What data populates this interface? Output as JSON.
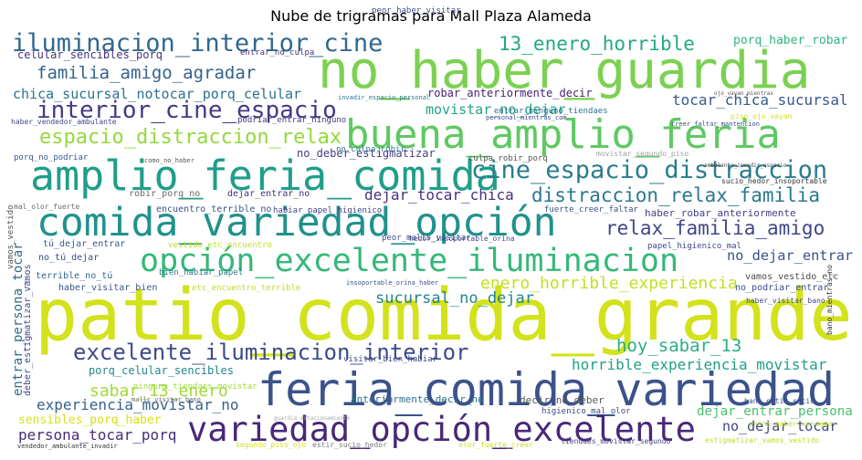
{
  "chart_data": {
    "type": "wordcloud",
    "title": "Nube de trigramas para Mall Plaza Alameda",
    "words": [
      {
        "text": "patio_comida_grande",
        "color": "#d2e21b"
      },
      {
        "text": "no_haber_guardia",
        "color": "#7ad151"
      },
      {
        "text": "feria_comida_variedad",
        "color": "#3b528b"
      },
      {
        "text": "variedad_opción_excelente",
        "color": "#482878"
      },
      {
        "text": "comida_variedad_opción",
        "color": "#21918c"
      },
      {
        "text": "amplio_feria_comida",
        "color": "#1f9e89"
      },
      {
        "text": "opción_excelente_iluminacion",
        "color": "#35b779"
      },
      {
        "text": "buena_amplio_feria",
        "color": "#5ec962"
      },
      {
        "text": "iluminacion_interior_cine",
        "color": "#31688e"
      },
      {
        "text": "excelente_iluminacion_interior",
        "color": "#3e4a89"
      },
      {
        "text": "interior_cine_espacio",
        "color": "#443983"
      },
      {
        "text": "cine_espacio_distraccion",
        "color": "#287d8e"
      },
      {
        "text": "espacio_distraccion_relax",
        "color": "#95d840"
      },
      {
        "text": "13_enero_horrible",
        "color": "#22a884"
      },
      {
        "text": "distraccion_relax_familia",
        "color": "#2a788e"
      },
      {
        "text": "relax_familia_amigo",
        "color": "#404688"
      },
      {
        "text": "familia_amigo_agradar",
        "color": "#33638d"
      },
      {
        "text": "chica_sucursal_notocar_porq_celular",
        "color": "#2c728e"
      },
      {
        "text": "tocar_chica_sucursal",
        "color": "#38598c"
      },
      {
        "text": "dejar_tocar_chica",
        "color": "#46327e"
      },
      {
        "text": "hoy_sabar_13",
        "color": "#29af7f"
      },
      {
        "text": "sabar_13_enero",
        "color": "#a0da39"
      },
      {
        "text": "sucursal_no_dejar",
        "color": "#26828e"
      },
      {
        "text": "enero_horrible_experiencia",
        "color": "#c2df23"
      },
      {
        "text": "no_dejar_entrar",
        "color": "#3b528b"
      },
      {
        "text": "horrible_experiencia_movistar",
        "color": "#1fa088"
      },
      {
        "text": "experiencia_movistar_no",
        "color": "#355f8d"
      },
      {
        "text": "dejar_entrar_persona",
        "color": "#4ac16d"
      },
      {
        "text": "persona_tocar_porq",
        "color": "#472d7b"
      },
      {
        "text": "no_dejar_tocar",
        "color": "#414487"
      },
      {
        "text": "movistar_no_dejar",
        "color": "#20a486"
      },
      {
        "text": "entrar_persona_tocar",
        "color": "#2f6c8e"
      },
      {
        "text": "sensibles_porq_haber",
        "color": "#d5e21a"
      },
      {
        "text": "porq_haber_robar",
        "color": "#2fb47c"
      },
      {
        "text": "celular_sencibles_porq",
        "color": "#46337f"
      },
      {
        "text": "porq_celular_sencibles",
        "color": "#24868e"
      },
      {
        "text": "robar_anteriormente_decir",
        "color": "#482173"
      },
      {
        "text": "anteriormente_decir_no",
        "color": "#2d708e"
      },
      {
        "text": "decir_no_deber",
        "color": "#5b5b5b"
      },
      {
        "text": "no_deber_estigmatizar",
        "color": "#433e85"
      },
      {
        "text": "haber_robar_anteriormente",
        "color": "#433e85"
      },
      {
        "text": "haber_visitar_bien",
        "color": "#38588c"
      },
      {
        "text": "bien_habiar_papel",
        "color": "#2a788e"
      },
      {
        "text": "papel_higienico_mal",
        "color": "#404588"
      },
      {
        "text": "vamos_vestido_etc",
        "color": "#4e4e4e"
      },
      {
        "text": "no_podriar_entrar",
        "color": "#3d4d8a"
      },
      {
        "text": "dejar_entrar_no",
        "color": "#46307e"
      },
      {
        "text": "robir_porq_no",
        "color": "#6a6a6a"
      },
      {
        "text": "culpa_robir_porq",
        "color": "#555555"
      },
      {
        "text": "podriar_entrar_ninguno",
        "color": "#453781"
      },
      {
        "text": "entrar_ninguno_tiendaes",
        "color": "#2c728e"
      },
      {
        "text": "movistar_segundo_piso",
        "color": "#a2a2a2"
      },
      {
        "text": "encuentro_terrible_no",
        "color": "#3a548c"
      },
      {
        "text": "tú_dejar_entrar",
        "color": "#375b8d"
      },
      {
        "text": "no_tú_dejar",
        "color": "#3e4c8a"
      },
      {
        "text": "terrible_no_tú",
        "color": "#31668e"
      },
      {
        "text": "haber_vendedor_ambulante",
        "color": "#3f4788"
      },
      {
        "text": "mal_olor_fuerte",
        "color": "#6b6b6b"
      },
      {
        "text": "sucio_hedor_insoportable",
        "color": "#333333"
      },
      {
        "text": "fuerte_creer_faltar",
        "color": "#3a538b"
      },
      {
        "text": "habiar_papel_higienico",
        "color": "#3f4889"
      },
      {
        "text": "visitar_bien_habiar",
        "color": "#3e4989"
      },
      {
        "text": "ninguno_tiendaes_movistar",
        "color": "#9fda3a"
      },
      {
        "text": "etc_encuentro_terrible",
        "color": "#b8de29"
      },
      {
        "text": "vestido_etc_encuentro",
        "color": "#bddf26"
      },
      {
        "text": "peor_haber_visitar",
        "color": "#3d4e8a"
      },
      {
        "text": "entrar_no_culpa",
        "color": "#46327e"
      },
      {
        "text": "no_culpa_robir",
        "color": "#2b748e"
      },
      {
        "text": "porq_no_podriar",
        "color": "#39568c"
      },
      {
        "text": "estigmatizar_vamos_vestido",
        "color": "#bddf26"
      },
      {
        "text": "tiendaes_movistar_segundo",
        "color": "#443a83"
      },
      {
        "text": "higienico_mal_olor",
        "color": "#3e4a89"
      },
      {
        "text": "vendedor_ambulante_invadir",
        "color": "#333333"
      },
      {
        "text": "olor_fuerte_creer",
        "color": "#c8e020"
      },
      {
        "text": "bano_estir_sucio",
        "color": "#3b528b"
      },
      {
        "text": "invadir_espacio_personal",
        "color": "#2a788e"
      },
      {
        "text": "personal_mientras_com",
        "color": "#3e4a89"
      },
      {
        "text": "creer_faltar_mantencion",
        "color": "#3e4a89"
      },
      {
        "text": "piso_ojo_vayan",
        "color": "#d2e21b"
      },
      {
        "text": "deber_estigmatizar_vamos",
        "color": "#3f4788"
      },
      {
        "text": "estir_sucio_hedor",
        "color": "#7a7a7a"
      },
      {
        "text": "segundo_piso_ojo",
        "color": "#d2e21b"
      },
      {
        "text": "como_no_haber",
        "color": "#555555"
      },
      {
        "text": "hedor_insoportable_orina",
        "color": "#3e4a89"
      },
      {
        "text": "insoportable_orina_haber",
        "color": "#3a548c"
      },
      {
        "text": "orina_haber_vendedor",
        "color": "#b8de29"
      },
      {
        "text": "haber_visitar_bano",
        "color": "#3e4a89"
      },
      {
        "text": "bano_mientras_no",
        "color": "#333333"
      },
      {
        "text": "mallc_visitar_bano",
        "color": "#666666"
      },
      {
        "text": "visitar_bien_habiar",
        "color": "#3e4a89"
      },
      {
        "text": "fuerte_creer_faltar",
        "color": "#3a538b"
      },
      {
        "text": "guardia_estacionamiento",
        "color": "#aaaaaa"
      },
      {
        "text": "ambulante_invadir_espacio",
        "color": "#444444"
      },
      {
        "text": "ojo_vayan_mientras",
        "color": "#555555"
      },
      {
        "text": "vamos_vestido",
        "color": "#555555"
      },
      {
        "text": "peor_malls_visitar",
        "color": "#3e4a89"
      }
    ]
  }
}
